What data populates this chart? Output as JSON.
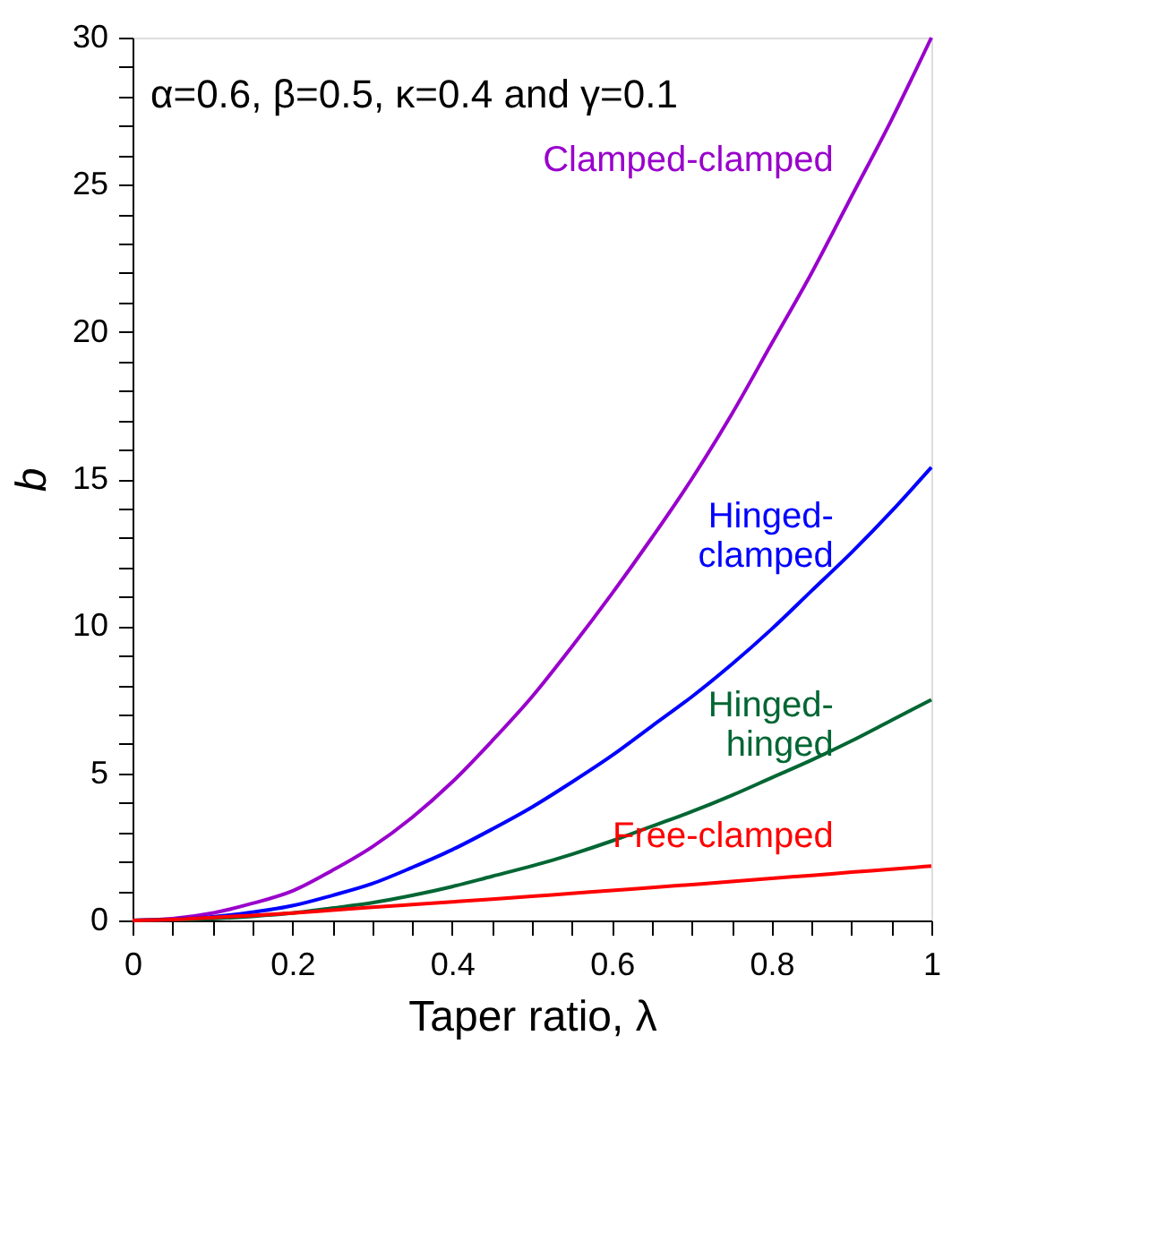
{
  "chart_data": {
    "type": "line",
    "xlabel": "Taper ratio, λ",
    "ylabel": "b",
    "annotations": [
      "α=0.6, β=0.5, κ=0.4 and γ=0.1"
    ],
    "x": [
      0,
      0.05,
      0.1,
      0.15,
      0.2,
      0.25,
      0.3,
      0.35,
      0.4,
      0.45,
      0.5,
      0.55,
      0.6,
      0.65,
      0.7,
      0.75,
      0.8,
      0.85,
      0.9,
      0.95,
      1
    ],
    "series": [
      {
        "name": "Clamped-clamped",
        "color": "#9900cc",
        "values": [
          0,
          0.06,
          0.25,
          0.58,
          1.0,
          1.7,
          2.5,
          3.5,
          4.7,
          6.1,
          7.6,
          9.3,
          11.1,
          13.0,
          15.0,
          17.2,
          19.6,
          22.0,
          24.6,
          27.2,
          30
        ]
      },
      {
        "name": "Hinged-\nclamped",
        "color": "#0000ff",
        "values": [
          0,
          0.03,
          0.12,
          0.28,
          0.5,
          0.85,
          1.25,
          1.8,
          2.4,
          3.1,
          3.85,
          4.7,
          5.6,
          6.6,
          7.6,
          8.7,
          9.9,
          11.2,
          12.5,
          13.9,
          15.4
        ]
      },
      {
        "name": "Hinged-\nhinged",
        "color": "#006633",
        "values": [
          0,
          0.02,
          0.06,
          0.14,
          0.25,
          0.42,
          0.6,
          0.85,
          1.15,
          1.5,
          1.85,
          2.25,
          2.7,
          3.2,
          3.7,
          4.25,
          4.85,
          5.45,
          6.1,
          6.8,
          7.5
        ]
      },
      {
        "name": "Free-clamped",
        "color": "#ff0000",
        "values": [
          0,
          0.03,
          0.1,
          0.17,
          0.25,
          0.35,
          0.45,
          0.54,
          0.63,
          0.72,
          0.82,
          0.92,
          1.02,
          1.12,
          1.22,
          1.32,
          1.43,
          1.53,
          1.64,
          1.74,
          1.85
        ]
      }
    ],
    "xlim": [
      0,
      1
    ],
    "xticks": [
      0,
      {
        "value": 0.05,
        "label": null
      },
      {
        "value": 0.1,
        "label": null
      },
      {
        "value": 0.15,
        "label": null
      },
      0.2,
      {
        "value": 0.25,
        "label": null
      },
      {
        "value": 0.3,
        "label": null
      },
      {
        "value": 0.35,
        "label": null
      },
      0.4,
      {
        "value": 0.45,
        "label": null
      },
      {
        "value": 0.5,
        "label": null
      },
      {
        "value": 0.55,
        "label": null
      },
      0.6,
      {
        "value": 0.65,
        "label": null
      },
      {
        "value": 0.7,
        "label": null
      },
      {
        "value": 0.75,
        "label": null
      },
      0.8,
      {
        "value": 0.85,
        "label": null
      },
      {
        "value": 0.9,
        "label": null
      },
      {
        "value": 0.95,
        "label": null
      },
      1
    ],
    "ylim": [
      0,
      30
    ],
    "yticks": [
      0,
      {
        "value": 1,
        "label": null
      },
      {
        "value": 2,
        "label": null
      },
      {
        "value": 3,
        "label": null
      },
      {
        "value": 4,
        "label": null
      },
      5,
      {
        "value": 6,
        "label": null
      },
      {
        "value": 7,
        "label": null
      },
      {
        "value": 8,
        "label": null
      },
      {
        "value": 9,
        "label": null
      },
      10,
      {
        "value": 11,
        "label": null
      },
      {
        "value": 12,
        "label": null
      },
      {
        "value": 13,
        "label": null
      },
      {
        "value": 14,
        "label": null
      },
      15,
      {
        "value": 16,
        "label": null
      },
      {
        "value": 17,
        "label": null
      },
      {
        "value": 18,
        "label": null
      },
      {
        "value": 19,
        "label": null
      },
      20,
      {
        "value": 21,
        "label": null
      },
      {
        "value": 22,
        "label": null
      },
      {
        "value": 23,
        "label": null
      },
      {
        "value": 24,
        "label": null
      },
      25,
      {
        "value": 26,
        "label": null
      },
      {
        "value": 27,
        "label": null
      },
      {
        "value": 28,
        "label": null
      },
      {
        "value": 29,
        "label": null
      },
      30
    ]
  }
}
